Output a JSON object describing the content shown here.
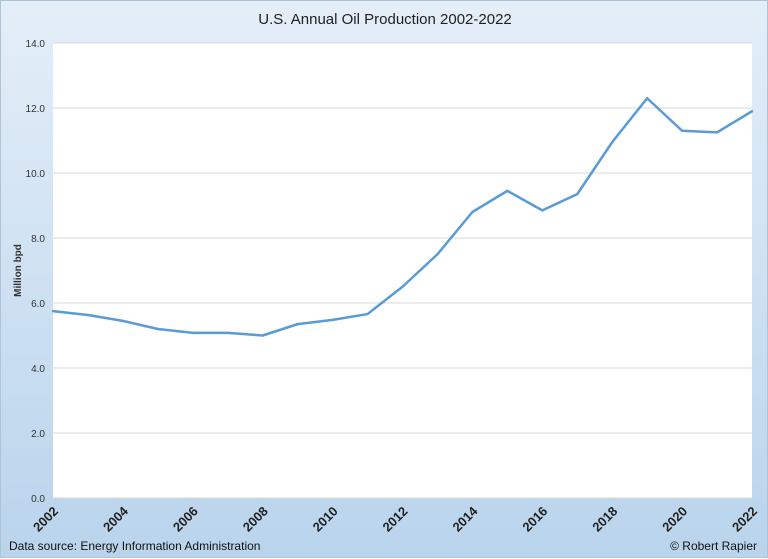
{
  "chart_data": {
    "type": "line",
    "title": "U.S. Annual Oil Production 2002-2022",
    "ylabel": "Million bpd",
    "xlabel": "",
    "ylim": [
      0,
      14
    ],
    "yticks": [
      "0.0",
      "2.0",
      "4.0",
      "6.0",
      "8.0",
      "10.0",
      "12.0",
      "14.0"
    ],
    "xticks": [
      "2002",
      "2004",
      "2006",
      "2008",
      "2010",
      "2012",
      "2014",
      "2016",
      "2018",
      "2020",
      "2022"
    ],
    "grid": true,
    "x": [
      2002,
      2003,
      2004,
      2005,
      2006,
      2007,
      2008,
      2009,
      2010,
      2011,
      2012,
      2013,
      2014,
      2015,
      2016,
      2017,
      2018,
      2019,
      2020,
      2021,
      2022
    ],
    "values": [
      5.75,
      5.63,
      5.45,
      5.2,
      5.08,
      5.08,
      5.0,
      5.35,
      5.48,
      5.66,
      6.5,
      7.5,
      8.8,
      9.45,
      8.85,
      9.35,
      10.95,
      12.3,
      11.3,
      11.25,
      11.9
    ],
    "line_color": "#5b9bd5"
  },
  "footer": {
    "source": "Data source: Energy Information Administration",
    "credit": "© Robert Rapier"
  }
}
